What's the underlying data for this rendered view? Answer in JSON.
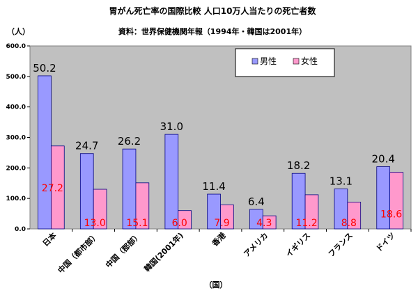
{
  "chart_data": {
    "type": "bar",
    "title": "胃がん死亡率の国際比較 人口10万人当たりの死亡者数",
    "subtitle": "資料：世界保健機関年報（1994年・韓国は2001年）",
    "ylabel": "（人）",
    "xlabel": "（国）",
    "ylim": [
      0,
      600
    ],
    "yticks": [
      "0.0",
      "100.0",
      "200.0",
      "300.0",
      "400.0",
      "500.0",
      "600.0"
    ],
    "grid": false,
    "legend_position": "top-right",
    "categories": [
      "日本",
      "中国（都市部）",
      "中国（郡部）",
      "韓国(2001年)",
      "香港",
      "アメリカ",
      "イギリス",
      "フランス",
      "ドイツ"
    ],
    "series": [
      {
        "name": "男性",
        "color": "#9999ff",
        "values": [
          502,
          247,
          262,
          310,
          114,
          64,
          182,
          131,
          204
        ],
        "labels": [
          "50.2",
          "24.7",
          "26.2",
          "31.0",
          "11.4",
          "6.4",
          "18.2",
          "13.1",
          "20.4"
        ],
        "label_color": "#000000"
      },
      {
        "name": "女性",
        "color": "#ff99cc",
        "values": [
          272,
          130,
          151,
          60,
          79,
          43,
          112,
          88,
          186
        ],
        "labels": [
          "27.2",
          "13.0",
          "15.1",
          "6.0",
          "7.9",
          "4.3",
          "11.2",
          "8.8",
          "18.6"
        ],
        "label_color": "#ff0000"
      }
    ],
    "plot_background": "#c0c0c0"
  }
}
